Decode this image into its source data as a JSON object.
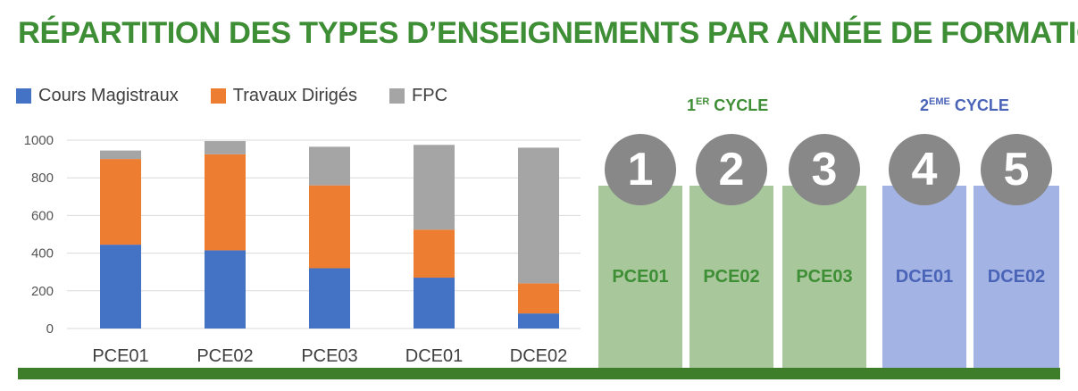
{
  "title": "RÉPARTITION DES TYPES D’ENSEIGNEMENTS PAR ANNÉE DE FORMATION",
  "colors": {
    "cm": "#4472c4",
    "td": "#ed7d31",
    "fpc": "#a5a5a5",
    "green": "#3e8e35",
    "blue": "#4a64b8"
  },
  "chart_data": {
    "type": "bar",
    "stacked": true,
    "categories": [
      "PCE01",
      "PCE02",
      "PCE03",
      "DCE01",
      "DCE02"
    ],
    "series": [
      {
        "name": "Cours Magistraux",
        "values": [
          445,
          415,
          320,
          270,
          80
        ]
      },
      {
        "name": "Travaux Dirigés",
        "values": [
          455,
          510,
          440,
          255,
          160
        ]
      },
      {
        "name": "FPC",
        "values": [
          45,
          70,
          205,
          450,
          720
        ]
      }
    ],
    "yticks": [
      "1000",
      "800",
      "600",
      "400",
      "200",
      "0"
    ],
    "ylim": [
      0,
      1000
    ],
    "grid": true,
    "legend": "top-left"
  },
  "cycles": [
    {
      "prefix": "1",
      "sup": "ER",
      "suffix": " CYCLE"
    },
    {
      "prefix": "2",
      "sup": "EME",
      "suffix": " CYCLE"
    }
  ],
  "columns": [
    {
      "num": "1",
      "label": "PCE01"
    },
    {
      "num": "2",
      "label": "PCE02"
    },
    {
      "num": "3",
      "label": "PCE03"
    },
    {
      "num": "4",
      "label": "DCE01"
    },
    {
      "num": "5",
      "label": "DCE02"
    }
  ]
}
